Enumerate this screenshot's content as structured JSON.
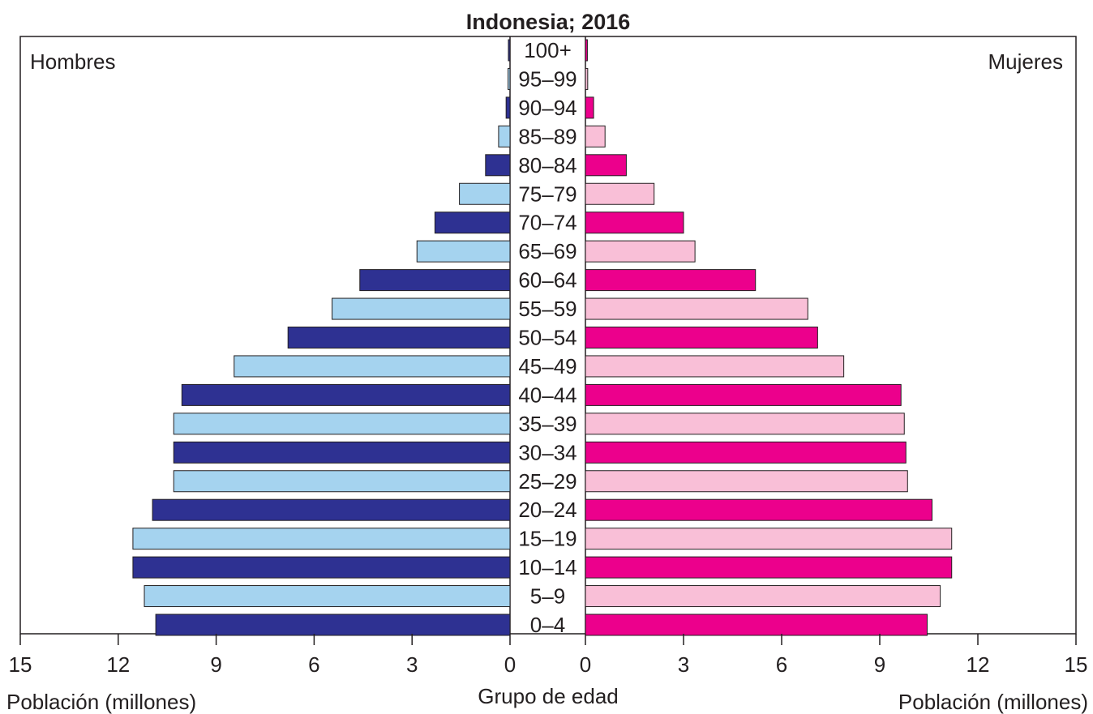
{
  "chart_data": {
    "type": "bar",
    "orientation": "horizontal",
    "layout": "population-pyramid",
    "title": "Indonesia; 2016",
    "categories": [
      "100+",
      "95–99",
      "90–94",
      "85–89",
      "80–84",
      "75–79",
      "70–74",
      "65–69",
      "60–64",
      "55–59",
      "50–54",
      "45–49",
      "40–44",
      "35–39",
      "30–34",
      "25–29",
      "20–24",
      "15–19",
      "10–14",
      "5–9",
      "0–4"
    ],
    "center_label": "Grupo de edad",
    "series": [
      {
        "name": "Hombres",
        "side": "left",
        "values": [
          0.05,
          0.06,
          0.12,
          0.35,
          0.75,
          1.55,
          2.3,
          2.85,
          4.6,
          5.45,
          6.8,
          8.45,
          10.05,
          10.3,
          10.3,
          10.3,
          10.95,
          11.55,
          11.55,
          11.2,
          10.85
        ],
        "colors": [
          "#2e3192",
          "#a5d3ef"
        ]
      },
      {
        "name": "Mujeres",
        "side": "right",
        "values": [
          0.06,
          0.07,
          0.25,
          0.6,
          1.25,
          2.1,
          3.0,
          3.35,
          5.2,
          6.8,
          7.1,
          7.9,
          9.65,
          9.75,
          9.8,
          9.85,
          10.6,
          11.2,
          11.2,
          10.85,
          10.45
        ],
        "colors": [
          "#ec008c",
          "#f9bfd7"
        ]
      }
    ],
    "xlabel_left": "Población (millones)",
    "xlabel_right": "Población (millones)",
    "xlim": [
      0,
      15
    ],
    "xticks": [
      "15",
      "12",
      "9",
      "6",
      "3",
      "0"
    ],
    "xticks_right": [
      "0",
      "3",
      "6",
      "9",
      "12",
      "15"
    ],
    "grid": false,
    "legend": "none"
  }
}
